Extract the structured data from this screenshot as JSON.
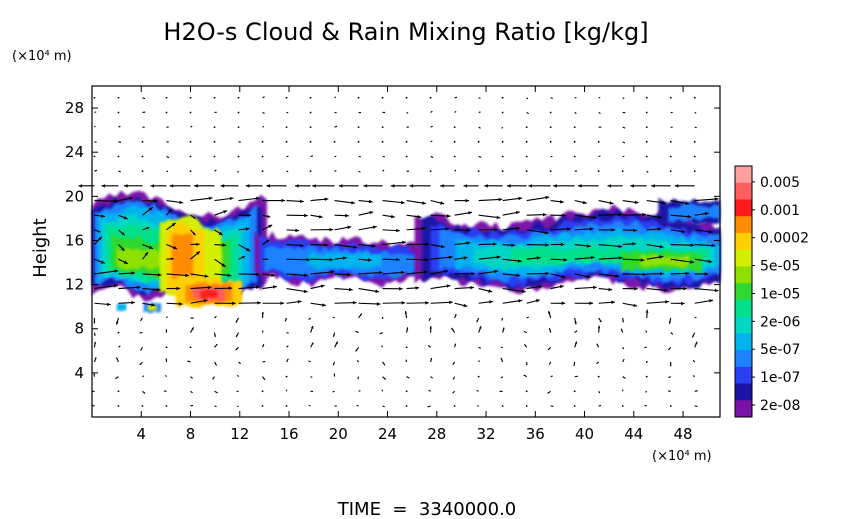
{
  "chart_data": {
    "type": "heatmap",
    "title": "H2O-s Cloud & Rain Mixing Ratio [kg/kg]",
    "ylabel": "Height",
    "y_unit": "(×10⁴ m)",
    "x_unit": "(×10⁴ m)",
    "time_label": "TIME  =  3340000.0",
    "xlim": [
      0,
      51
    ],
    "ylim": [
      0,
      30
    ],
    "x_ticks": [
      4,
      8,
      12,
      16,
      20,
      24,
      28,
      32,
      36,
      40,
      44,
      48
    ],
    "y_ticks": [
      4,
      8,
      12,
      16,
      20,
      24,
      28
    ],
    "colorbar": {
      "labels": [
        "0.005",
        "0.001",
        "0.0002",
        "5e-05",
        "1e-05",
        "2e-06",
        "5e-07",
        "1e-07",
        "2e-08"
      ],
      "colors": [
        "#ff9f9f",
        "#ff5f5f",
        "#ff1b1b",
        "#ff8c00",
        "#ffcf00",
        "#d4ee00",
        "#8fe000",
        "#2fd82f",
        "#00e08a",
        "#00d6c4",
        "#00b4ee",
        "#1c82ff",
        "#2a3ef2",
        "#1a14a6",
        "#7a12a8"
      ]
    },
    "overlay": "wind vectors",
    "regions": [
      {
        "x": [
          0,
          14
        ],
        "y": [
          10,
          20
        ],
        "peak": "0.001"
      },
      {
        "x": [
          14,
          27
        ],
        "y": [
          12,
          17
        ],
        "peak": "5e-07"
      },
      {
        "x": [
          27,
          51
        ],
        "y": [
          12,
          19.5
        ],
        "peak": "5e-05"
      }
    ]
  }
}
